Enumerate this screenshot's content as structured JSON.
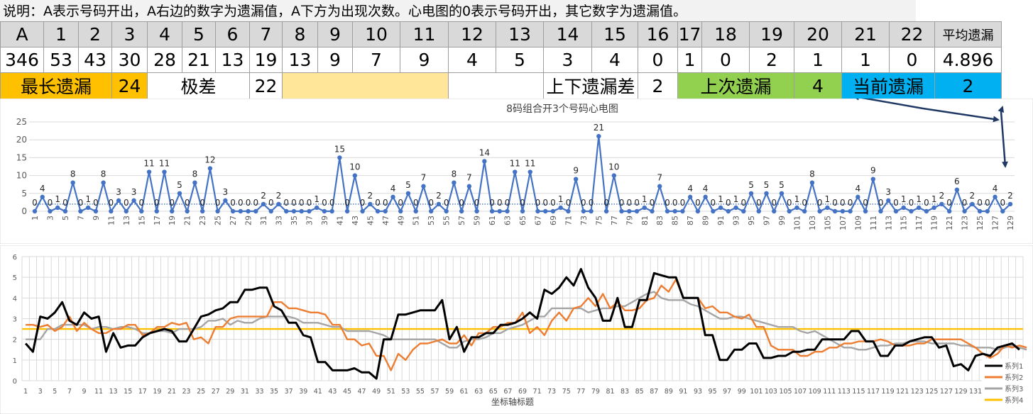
{
  "note": "说明：A表示号码开出，A右边的数字为遗漏值，A下方为出现次数。心电图的0表示号码开出，其它数字为遗漏值。",
  "table": {
    "headers": [
      "A",
      "1",
      "2",
      "3",
      "4",
      "5",
      "6",
      "7",
      "8",
      "9",
      "10",
      "11",
      "12",
      "13",
      "14",
      "15",
      "16",
      "17",
      "18",
      "19",
      "20",
      "21",
      "22",
      "平均遗漏"
    ],
    "values": [
      "346",
      "53",
      "43",
      "30",
      "28",
      "21",
      "13",
      "19",
      "13",
      "9",
      "7",
      "9",
      "4",
      "5",
      "3",
      "4",
      "0",
      "1",
      "0",
      "2",
      "1",
      "1",
      "0",
      "4.896"
    ],
    "stats": {
      "longest_label": "最长遗漏",
      "longest_value": "24",
      "range_label": "极差",
      "range_value": "22",
      "updown_label": "上下遗漏差",
      "updown_value": "2",
      "last_label": "上次遗漏",
      "last_value": "4",
      "current_label": "当前遗漏",
      "current_value": "2"
    }
  },
  "chart_data": [
    {
      "type": "line",
      "title": "8码组合开3个号码心电图",
      "ylim": [
        0,
        25
      ],
      "yticks": [
        0,
        5,
        10,
        15,
        20,
        25
      ],
      "x_tick_step": 2,
      "grid": true,
      "series": [
        {
          "color": "#4472c4",
          "values": [
            0,
            4,
            0,
            1,
            0,
            8,
            0,
            1,
            0,
            8,
            0,
            3,
            0,
            3,
            0,
            11,
            0,
            11,
            0,
            5,
            0,
            8,
            0,
            12,
            0,
            3,
            0,
            0,
            0,
            0,
            2,
            0,
            2,
            0,
            0,
            0,
            0,
            1,
            0,
            0,
            15,
            0,
            10,
            0,
            2,
            0,
            0,
            4,
            0,
            5,
            0,
            7,
            0,
            2,
            0,
            8,
            0,
            7,
            0,
            14,
            0,
            0,
            0,
            11,
            0,
            11,
            0,
            0,
            0,
            1,
            0,
            9,
            0,
            0,
            21,
            0,
            10,
            0,
            0,
            0,
            1,
            0,
            7,
            0,
            0,
            0,
            4,
            0,
            4,
            0,
            1,
            0,
            1,
            0,
            5,
            0,
            5,
            0,
            5,
            0,
            1,
            0,
            8,
            0,
            1,
            0,
            0,
            0,
            4,
            0,
            9,
            0,
            3,
            0,
            1,
            0,
            1,
            0,
            1,
            2,
            0,
            6,
            0,
            2,
            0,
            0,
            4,
            0,
            2
          ]
        },
        {
          "style": "dotted-trend",
          "color": "#4472c4",
          "values": [
            2,
            2
          ]
        }
      ]
    },
    {
      "type": "line",
      "xlabel": "坐标轴标题",
      "ylim": [
        0,
        6
      ],
      "yticks": [
        0,
        1,
        2,
        3,
        4,
        5,
        6
      ],
      "x_tick_step": 2,
      "grid": true,
      "legend": "bottom-right",
      "series": [
        {
          "name": "系列1",
          "color": "#000000",
          "values": [
            1.8,
            1.4,
            3.1,
            3.0,
            3.3,
            3.8,
            2.9,
            2.7,
            3.3,
            3.0,
            3.1,
            1.4,
            2.3,
            1.6,
            1.7,
            1.7,
            2.1,
            2.3,
            2.4,
            2.5,
            2.4,
            1.9,
            1.9,
            2.5,
            3.1,
            3.2,
            3.4,
            3.5,
            3.8,
            3.8,
            4.4,
            4.4,
            4.5,
            4.5,
            3.6,
            3.4,
            2.8,
            2.8,
            2.2,
            2.1,
            0.9,
            0.9,
            0.5,
            0.5,
            0.5,
            0.6,
            0.4,
            0.4,
            0.1,
            2.0,
            2.0,
            3.2,
            3.2,
            3.3,
            3.4,
            3.4,
            3.4,
            3.9,
            2.0,
            2.6,
            1.4,
            2.1,
            2.1,
            2.3,
            2.3,
            2.7,
            2.7,
            2.8,
            3.0,
            3.3,
            3.0,
            4.4,
            4.2,
            4.5,
            5.0,
            4.6,
            5.4,
            4.5,
            4.0,
            2.9,
            2.9,
            4.0,
            2.6,
            2.6,
            3.9,
            3.9,
            5.2,
            5.1,
            5.0,
            5.0,
            4.0,
            4.0,
            4.0,
            2.2,
            2.2,
            1.0,
            1.0,
            1.5,
            1.5,
            1.8,
            1.8,
            1.1,
            1.1,
            1.2,
            1.2,
            1.4,
            1.4,
            1.5,
            1.5,
            2.0,
            2.0,
            2.0,
            2.0,
            2.4,
            2.4,
            1.9,
            1.9,
            1.2,
            1.2,
            1.7,
            1.7,
            1.9,
            2.0,
            2.1,
            2.1,
            1.6,
            1.7,
            0.7,
            0.8,
            0.5,
            1.2,
            1.3,
            1.2,
            1.6,
            1.7,
            1.8,
            1.5
          ]
        },
        {
          "name": "系列2",
          "color": "#ed7d31",
          "values": [
            2.7,
            2.7,
            2.6,
            2.7,
            2.4,
            2.6,
            3.1,
            2.4,
            2.8,
            2.5,
            2.3,
            2.3,
            2.5,
            2.5,
            2.7,
            2.7,
            2.2,
            2.3,
            2.6,
            2.6,
            2.8,
            2.7,
            2.8,
            2.0,
            2.1,
            1.8,
            2.6,
            2.6,
            3.0,
            3.1,
            3.1,
            3.1,
            3.1,
            3.1,
            3.8,
            3.8,
            3.5,
            3.5,
            3.4,
            3.3,
            3.3,
            3.2,
            2.7,
            2.7,
            2.0,
            2.0,
            1.7,
            1.8,
            1.2,
            1.2,
            0.5,
            1.3,
            1.0,
            1.5,
            1.8,
            1.8,
            1.9,
            2.0,
            1.8,
            1.8,
            2.2,
            1.7,
            2.3,
            2.3,
            2.6,
            2.6,
            2.8,
            2.8,
            3.3,
            2.3,
            2.6,
            2.2,
            2.9,
            3.3,
            2.9,
            3.5,
            3.6,
            4.0,
            3.6,
            4.2,
            3.5,
            3.8,
            3.4,
            3.4,
            3.5,
            3.9,
            4.0,
            4.6,
            4.3,
            4.9,
            4.0,
            4.0,
            4.0,
            3.5,
            3.6,
            3.3,
            3.3,
            3.1,
            3.0,
            3.2,
            2.6,
            2.6,
            1.7,
            1.5,
            1.5,
            1.5,
            1.2,
            1.2,
            1.4,
            1.4,
            1.6,
            1.6,
            1.8,
            1.8,
            1.9,
            1.9,
            1.9,
            2.0,
            1.9,
            1.7,
            1.7,
            1.7,
            1.8,
            1.8,
            2.0,
            2.0,
            2.0,
            2.0,
            2.0,
            1.8,
            1.6,
            1.3,
            1.1,
            1.3,
            1.7,
            1.6,
            1.7,
            1.6
          ]
        },
        {
          "name": "系列3",
          "color": "#a5a5a5",
          "values": [
            2.0,
            2.0,
            2.0,
            2.5,
            2.5,
            2.7,
            2.7,
            2.7,
            2.7,
            2.5,
            2.6,
            2.6,
            2.5,
            2.6,
            2.6,
            2.5,
            2.3,
            2.3,
            2.4,
            2.4,
            2.3,
            2.5,
            2.5,
            2.5,
            2.6,
            2.9,
            2.9,
            3.0,
            2.7,
            2.9,
            2.8,
            2.8,
            3.0,
            3.1,
            3.1,
            3.1,
            3.1,
            3.0,
            2.8,
            2.8,
            2.8,
            2.7,
            2.6,
            2.6,
            2.4,
            2.4,
            2.4,
            2.4,
            2.3,
            2.2,
            2.0,
            2.0,
            2.0,
            2.0,
            2.0,
            2.0,
            2.0,
            1.8,
            1.6,
            1.6,
            1.9,
            2.0,
            2.0,
            2.1,
            2.3,
            2.3,
            2.5,
            2.6,
            2.7,
            2.9,
            3.1,
            3.1,
            3.5,
            3.5,
            3.5,
            3.5,
            3.5,
            3.3,
            3.4,
            3.5,
            3.5,
            3.6,
            3.6,
            3.8,
            4.0,
            4.2,
            4.3,
            4.0,
            3.9,
            3.9,
            3.9,
            3.7,
            3.6,
            3.4,
            3.2,
            3.0,
            3.0,
            3.1,
            3.1,
            3.0,
            2.9,
            2.8,
            2.7,
            2.6,
            2.6,
            2.6,
            2.4,
            2.3,
            2.4,
            2.2,
            2.0,
            1.8,
            1.6,
            1.6,
            1.5,
            1.5,
            1.6,
            1.7,
            1.7,
            1.8,
            1.8,
            1.9,
            1.9,
            1.9,
            1.8,
            1.8,
            1.8,
            1.8,
            1.7,
            1.7,
            1.6,
            1.6,
            1.6,
            1.5,
            1.6,
            1.7,
            1.6,
            1.5
          ]
        },
        {
          "name": "系列4",
          "color": "#ffc000",
          "values": [
            2.5,
            2.5
          ]
        }
      ]
    }
  ]
}
